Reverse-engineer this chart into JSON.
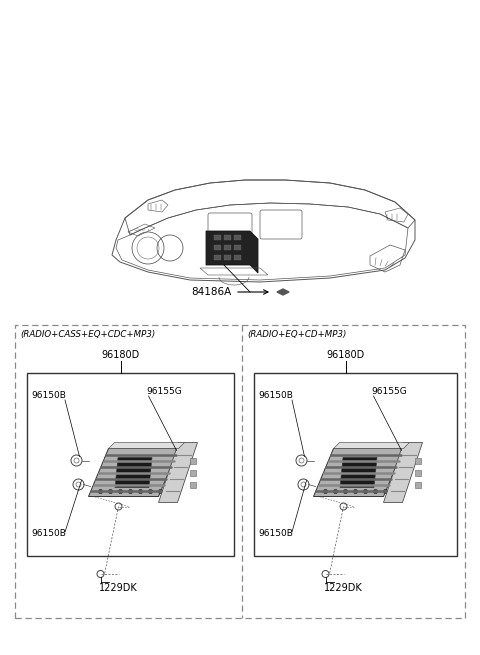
{
  "bg_color": "#ffffff",
  "fig_width": 4.8,
  "fig_height": 6.55,
  "dpi": 100,
  "label_84186A": "84186A",
  "left_panel_header": "(RADIO+CASS+EQ+CDC+MP3)",
  "right_panel_header": "(RADIO+EQ+CD+MP3)",
  "label_96180D": "96180D",
  "label_96155G": "96155G",
  "label_96150B": "96150B",
  "label_1229DK": "1229DK",
  "line_color": "#000000",
  "text_color": "#000000",
  "dash_color": "#888888",
  "gray_light": "#cccccc",
  "gray_mid": "#888888",
  "gray_dark": "#444444",
  "black": "#111111"
}
